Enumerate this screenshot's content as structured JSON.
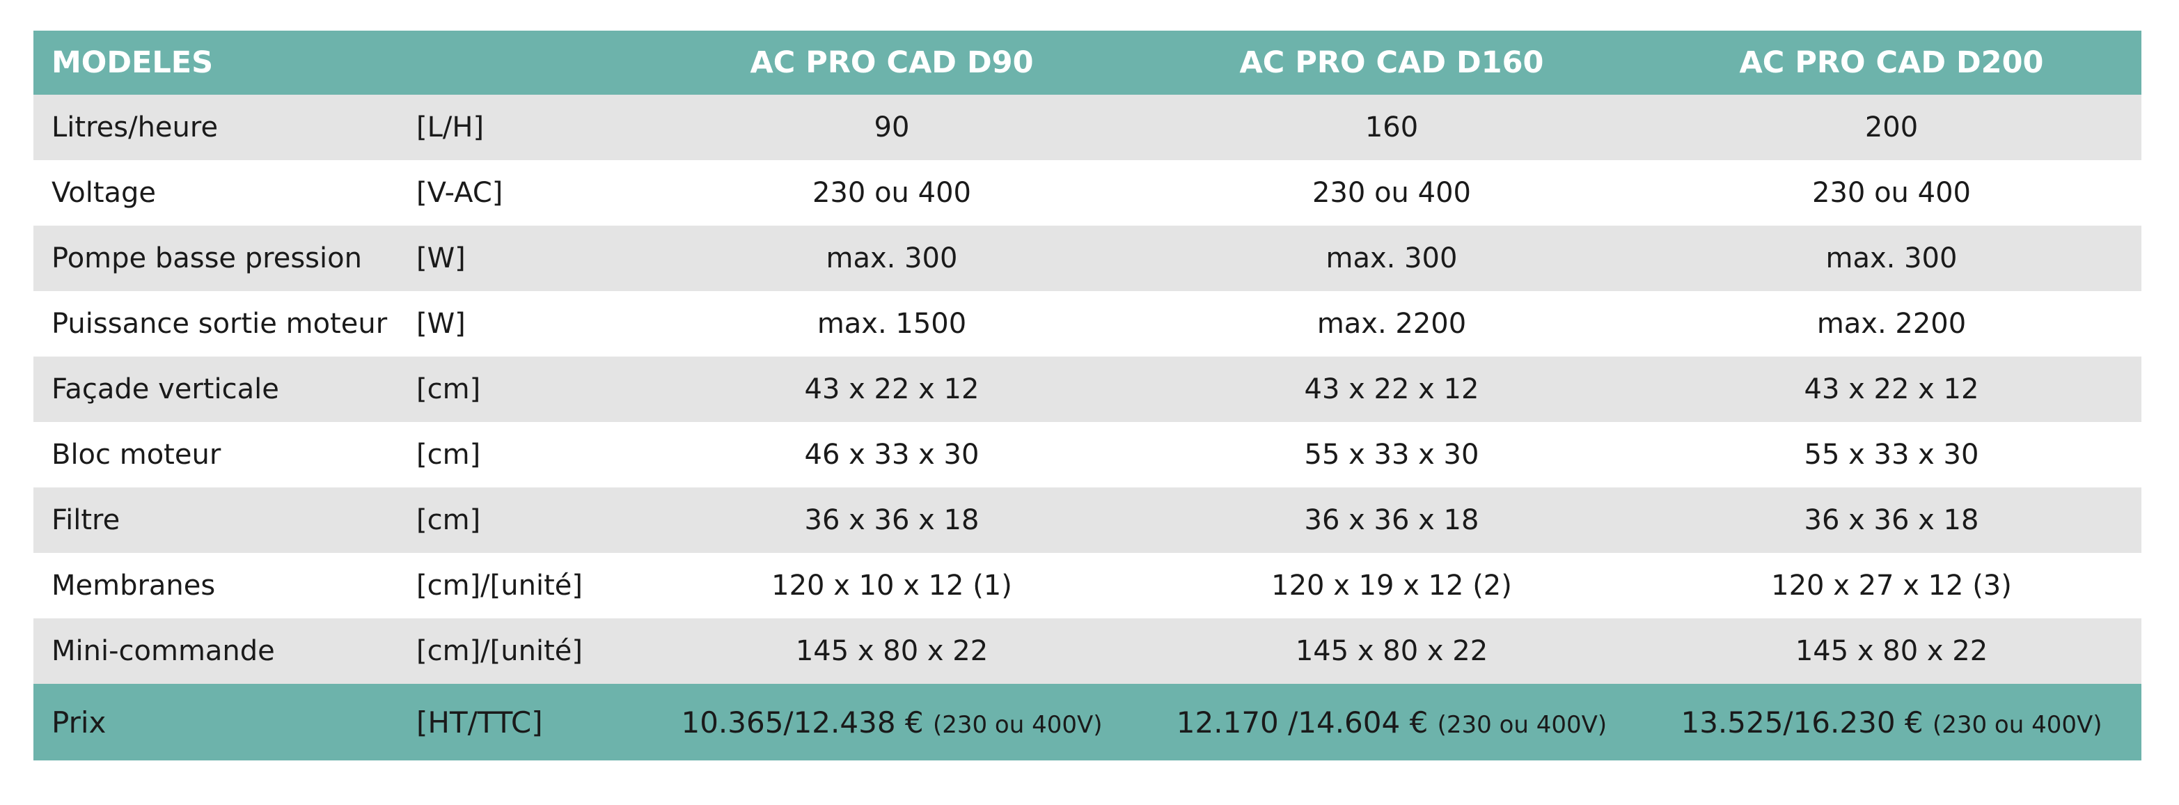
{
  "header": {
    "label": "MODELES",
    "unit": "",
    "models": [
      "AC PRO CAD D90",
      "AC PRO CAD D160",
      "AC PRO CAD D200"
    ]
  },
  "rows": [
    {
      "label": "Litres/heure",
      "unit": "[L/H]",
      "values": [
        "90",
        "160",
        "200"
      ]
    },
    {
      "label": "Voltage",
      "unit": "[V-AC]",
      "values": [
        "230 ou 400",
        "230 ou 400",
        "230 ou 400"
      ]
    },
    {
      "label": "Pompe basse pression",
      "unit": "[W]",
      "values": [
        "max. 300",
        "max. 300",
        "max. 300"
      ]
    },
    {
      "label": "Puissance sortie moteur",
      "unit": "[W]",
      "values": [
        "max. 1500",
        "max. 2200",
        "max. 2200"
      ]
    },
    {
      "label": "Façade verticale",
      "unit": "[cm]",
      "values": [
        "43 x 22 x 12",
        "43 x 22 x 12",
        "43 x 22 x 12"
      ]
    },
    {
      "label": "Bloc moteur",
      "unit": "[cm]",
      "values": [
        "46 x 33 x 30",
        "55 x 33 x 30",
        "55 x 33 x 30"
      ]
    },
    {
      "label": "Filtre",
      "unit": "[cm]",
      "values": [
        "36 x 36 x 18",
        "36 x 36 x 18",
        "36 x 36 x 18"
      ]
    },
    {
      "label": "Membranes",
      "unit": "[cm]/[unité]",
      "values": [
        "120 x 10 x 12 (1)",
        "120 x 19 x 12 (2)",
        "120 x 27 x 12 (3)"
      ]
    },
    {
      "label": "Mini-commande",
      "unit": "[cm]/[unité]",
      "values": [
        "145 x 80 x 22",
        "145 x 80 x 22",
        "145 x 80 x 22"
      ]
    }
  ],
  "price": {
    "label": "Prix",
    "unit": "[HT/TTC]",
    "values": [
      {
        "amount": "10.365/12.438 €",
        "note": "(230 ou 400V)"
      },
      {
        "amount": "12.170 /14.604 €",
        "note": "(230 ou 400V)"
      },
      {
        "amount": "13.525/16.230 €",
        "note": "(230 ou 400V)"
      }
    ]
  },
  "colors": {
    "teal": "#6db3ab",
    "stripe": "#e4e4e4"
  }
}
